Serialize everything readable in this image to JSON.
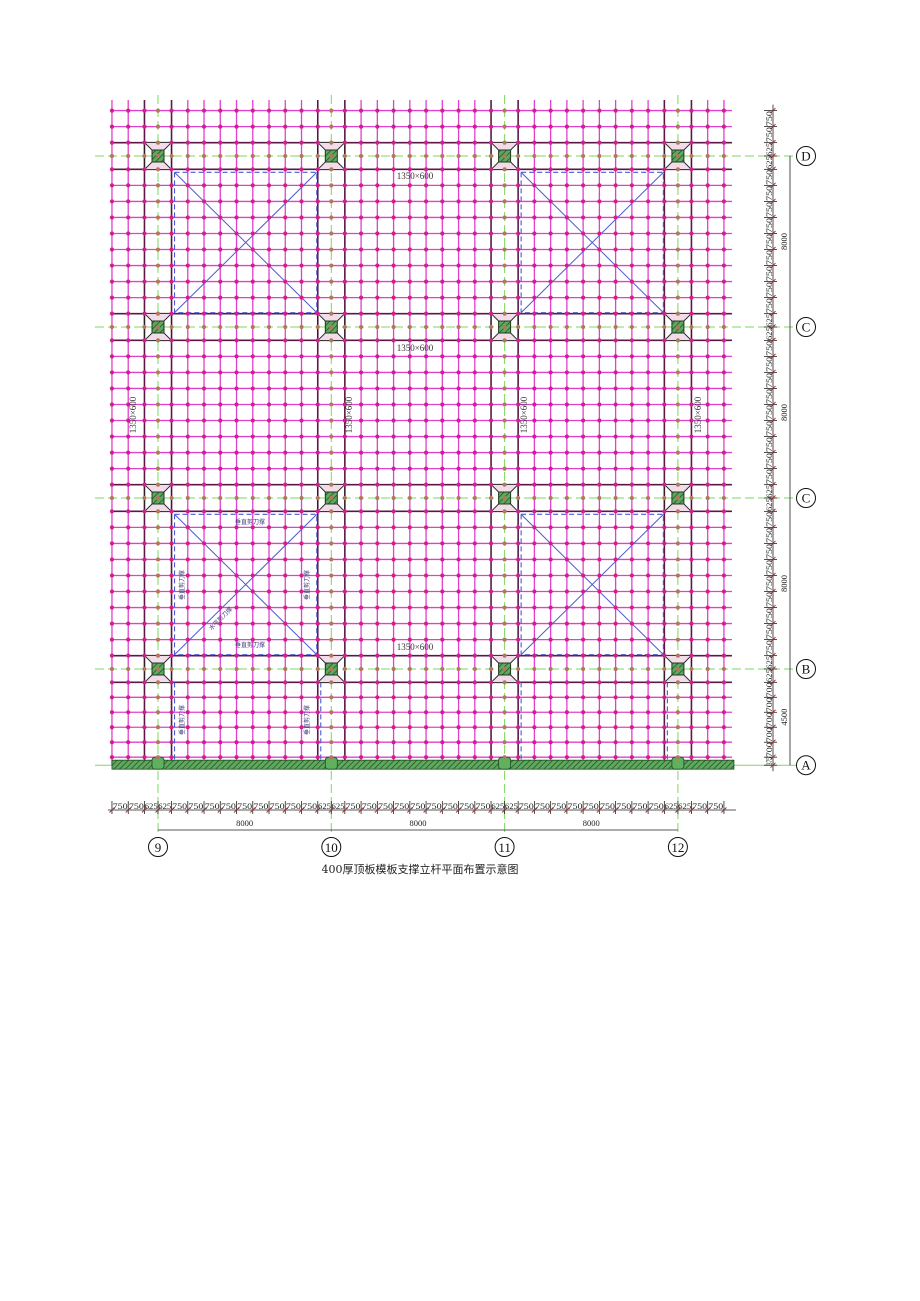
{
  "title": "400厚顶板模板支撑立杆平面布置示意图",
  "axes": {
    "columns": [
      "9",
      "10",
      "11",
      "12"
    ],
    "rows": [
      "D",
      "C",
      "C",
      "B",
      "A"
    ]
  },
  "dimensions": {
    "horizontal_chain": [
      750,
      750,
      625,
      625,
      750,
      750,
      750,
      750,
      750,
      750,
      750,
      750,
      750,
      625,
      625,
      750,
      750,
      750,
      750,
      750,
      750,
      750,
      750,
      750,
      625,
      625,
      750,
      750,
      750,
      750,
      750,
      750,
      750,
      750,
      750,
      625,
      625,
      750,
      750
    ],
    "horizontal_spans": [
      "8000",
      "8000",
      "8000"
    ],
    "vertical_chain": [
      750,
      750,
      625,
      625,
      750,
      750,
      750,
      750,
      750,
      750,
      750,
      750,
      750,
      625,
      625,
      750,
      750,
      750,
      750,
      750,
      750,
      750,
      750,
      750,
      625,
      625,
      750,
      750,
      750,
      750,
      750,
      750,
      750,
      750,
      750,
      625,
      625,
      700,
      700,
      700,
      700,
      700,
      375
    ],
    "vertical_spans": [
      "8000",
      "8000",
      "8000",
      "4500"
    ]
  },
  "annotations": {
    "beam_section": "1350×600",
    "vertical_bracing": "垂直剪刀撑",
    "horizontal_bracing": "水平剪刀撑"
  },
  "braced_bays": [
    {
      "columns": [
        "9",
        "10"
      ],
      "rows": [
        "D",
        "C"
      ]
    },
    {
      "columns": [
        "11",
        "12"
      ],
      "rows": [
        "D",
        "C"
      ]
    },
    {
      "columns": [
        "9",
        "10"
      ],
      "rows": [
        "C",
        "B"
      ]
    },
    {
      "columns": [
        "11",
        "12"
      ],
      "rows": [
        "C",
        "B"
      ]
    }
  ],
  "colors": {
    "pole_grid": "#e040d0",
    "pole_node": "#d0208c",
    "beam_band": "#5a1848",
    "axis_line": "#7ad860",
    "bracing": "#4a5ad0",
    "column": "#3a6a3a",
    "wall": "#4c9a4c"
  }
}
